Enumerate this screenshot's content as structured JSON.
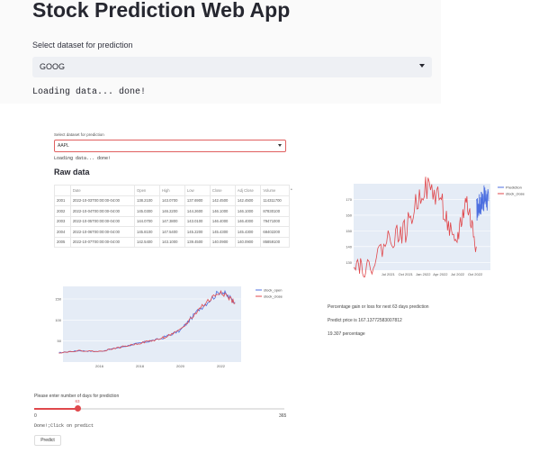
{
  "app": {
    "title": "Stock Prediction Web App"
  },
  "select": {
    "label": "Select dataset for prediction",
    "value": "GOOG"
  },
  "status": {
    "loading": "Loading data... done!"
  },
  "embedded": {
    "select_label": "Select dataset for prediction",
    "select_value": "AAPL",
    "loading": "Loading data... done!",
    "raw_heading": "Raw data",
    "table": {
      "columns": [
        "",
        "Date",
        "Open",
        "High",
        "Low",
        "Close",
        "Adj Close",
        "Volume"
      ],
      "rows": [
        [
          "2001",
          "2022-10-03T00:00:00-04:00",
          "138.2100",
          "143.0700",
          "137.6900",
          "142.4500",
          "142.4500",
          "114311700"
        ],
        [
          "2002",
          "2022-10-04T00:00:00-04:00",
          "145.0300",
          "146.2200",
          "144.2600",
          "146.1000",
          "146.1000",
          "87830100"
        ],
        [
          "2003",
          "2022-10-05T00:00:00-04:00",
          "144.0700",
          "147.3800",
          "143.0100",
          "146.4000",
          "146.4000",
          "79471000"
        ],
        [
          "2004",
          "2022-10-06T00:00:00-04:00",
          "145.8100",
          "147.5400",
          "145.2200",
          "145.4300",
          "145.4300",
          "68402200"
        ],
        [
          "2005",
          "2022-10-07T00:00:00-04:00",
          "142.5400",
          "143.1000",
          "139.4500",
          "140.0900",
          "140.0900",
          "85859100"
        ]
      ]
    },
    "table_marker": "•",
    "notes": {
      "line1": "Percentage gain or loss for next 63 days prediction",
      "line2": "Predict price is 167.13772583007812",
      "line3": "19.307 percentage"
    },
    "days_label": "Please enter number of days for prediction",
    "slider": {
      "value": 63,
      "min": 0,
      "max": 365,
      "value_label": "63",
      "min_label": "0",
      "max_label": "365"
    },
    "done_text": "Done!;Click on predict",
    "predict_button": "Predict"
  },
  "colors": {
    "accent": "#e0484c",
    "stock_open": "#4c6fe0",
    "stock_close": "#e0484c"
  },
  "chart_data": [
    {
      "type": "line",
      "legend": "top-right",
      "series": [
        {
          "name": "Prediction",
          "color": "#4c6fe0",
          "x": [
            "2022-10-08",
            "2022-10-25",
            "2022-11-10",
            "2022-11-25",
            "2022-12-10"
          ],
          "y": [
            163,
            167,
            170,
            171,
            169
          ]
        },
        {
          "name": "stock_close",
          "color": "#e0484c",
          "x": [
            "2021-01-01",
            "2021-03-15",
            "2021-07-01",
            "2021-10-01",
            "2022-01-01",
            "2022-04-01",
            "2022-06-15",
            "2022-08-15",
            "2022-10-07"
          ],
          "y": [
            132,
            125,
            145,
            150,
            178,
            172,
            138,
            170,
            140
          ]
        }
      ],
      "x_ticks": [
        "Jul 2021",
        "Oct 2021",
        "Jan 2022",
        "Apr 2022",
        "Jul 2022",
        "Oct 2022"
      ],
      "y_ticks": [
        "130",
        "140",
        "150",
        "160",
        "170"
      ],
      "ylim": [
        125,
        180
      ]
    },
    {
      "type": "line",
      "legend": "top-right",
      "series": [
        {
          "name": "stock_open",
          "color": "#4c6fe0",
          "x": [
            2014,
            2015,
            2016,
            2017,
            2018,
            2019,
            2020,
            2021,
            2022,
            2022.7
          ],
          "y": [
            22,
            27,
            25,
            35,
            45,
            55,
            75,
            130,
            170,
            142
          ]
        },
        {
          "name": "stock_close",
          "color": "#e0484c",
          "x": [
            2014,
            2015,
            2016,
            2017,
            2018,
            2019,
            2020,
            2021,
            2022,
            2022.7
          ],
          "y": [
            22,
            27,
            25,
            35,
            45,
            55,
            75,
            130,
            170,
            140
          ]
        }
      ],
      "x_ticks": [
        "2016",
        "2018",
        "2020",
        "2022"
      ],
      "y_ticks": [
        "50",
        "100",
        "150"
      ],
      "ylim": [
        0,
        180
      ]
    }
  ]
}
